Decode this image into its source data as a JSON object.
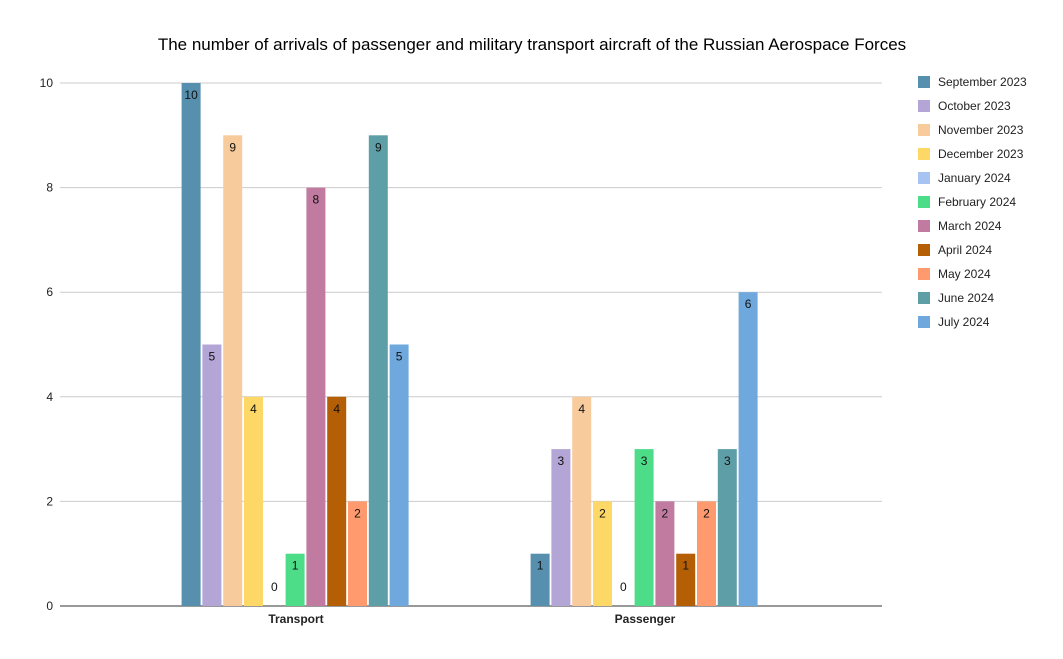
{
  "chart_data": {
    "type": "bar",
    "title": "The number of arrivals of passenger and military transport aircraft of the Russian Aerospace Forces",
    "xlabel": "",
    "ylabel": "",
    "ylim": [
      0,
      10
    ],
    "yticks": [
      "0",
      "2",
      "4",
      "6",
      "8",
      "10"
    ],
    "grid": true,
    "legend_position": "right",
    "categories": [
      "Transport",
      "Passenger"
    ],
    "series": [
      {
        "name": "September 2023",
        "color": "#5690ae",
        "values": [
          10,
          1
        ]
      },
      {
        "name": "October 2023",
        "color": "#b3a5d6",
        "values": [
          5,
          3
        ]
      },
      {
        "name": "November 2023",
        "color": "#f8cb9d",
        "values": [
          9,
          4
        ]
      },
      {
        "name": "December 2023",
        "color": "#fdd866",
        "values": [
          4,
          2
        ]
      },
      {
        "name": "January 2024",
        "color": "#a6c3f2",
        "values": [
          0,
          0
        ]
      },
      {
        "name": "February 2024",
        "color": "#4ddc88",
        "values": [
          1,
          3
        ]
      },
      {
        "name": "March 2024",
        "color": "#c27ba0",
        "values": [
          8,
          2
        ]
      },
      {
        "name": "April 2024",
        "color": "#b45f06",
        "values": [
          4,
          1
        ]
      },
      {
        "name": "May 2024",
        "color": "#fe9a6d",
        "values": [
          2,
          2
        ]
      },
      {
        "name": "June 2024",
        "color": "#5e9ea6",
        "values": [
          9,
          3
        ]
      },
      {
        "name": "July 2024",
        "color": "#6fa8dc",
        "values": [
          5,
          6
        ]
      }
    ]
  }
}
